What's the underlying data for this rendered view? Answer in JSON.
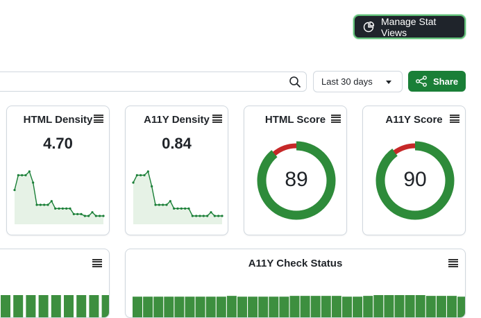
{
  "toolbar": {
    "manage_label": "Manage Stat Views",
    "search_value": "",
    "search_placeholder": "",
    "date_range": "Last 30 days",
    "share_label": "Share"
  },
  "icons": {
    "manage": "pie-chart-icon",
    "search": "search-icon",
    "date_caret": "caret-down-icon",
    "share": "share-icon",
    "menu": "hamburger-menu-icon"
  },
  "colors": {
    "accent_green": "#1a7f37",
    "bar_green": "#3d8f3f",
    "gauge_green": "#2e8b3a",
    "gauge_red": "#c62828",
    "spark_fill": "#e6f2e6"
  },
  "cards": [
    {
      "title": "HTML Density",
      "value": "4.70",
      "type": "sparkline"
    },
    {
      "title": "A11Y Density",
      "value": "0.84",
      "type": "sparkline"
    },
    {
      "title": "HTML Score",
      "value": "89",
      "type": "gauge"
    },
    {
      "title": "A11Y Score",
      "value": "90",
      "type": "gauge"
    }
  ],
  "lower_cards": [
    {
      "title": ""
    },
    {
      "title": "A11Y Check Status"
    }
  ],
  "chart_data": [
    {
      "type": "area",
      "title": "HTML Density",
      "values": [
        5.6,
        6.4,
        6.4,
        6.4,
        6.6,
        6.0,
        4.8,
        4.8,
        4.8,
        4.8,
        5.0,
        4.6,
        4.6,
        4.6,
        4.6,
        4.6,
        4.3,
        4.3,
        4.3,
        4.2,
        4.2,
        4.4,
        4.2,
        4.2,
        4.2
      ]
    },
    {
      "type": "area",
      "title": "A11Y Density",
      "values": [
        1.7,
        1.9,
        1.9,
        1.9,
        2.0,
        1.6,
        1.1,
        1.1,
        1.1,
        1.1,
        1.2,
        1.0,
        1.0,
        1.0,
        1.0,
        1.0,
        0.8,
        0.8,
        0.8,
        0.8,
        0.8,
        0.9,
        0.8,
        0.8,
        0.8
      ]
    },
    {
      "type": "pie",
      "title": "HTML Score",
      "values": [
        89,
        11
      ]
    },
    {
      "type": "pie",
      "title": "A11Y Score",
      "values": [
        90,
        10
      ]
    },
    {
      "type": "bar",
      "title": "",
      "values": [
        30,
        30,
        30,
        30,
        30,
        30,
        30,
        30,
        30
      ]
    },
    {
      "type": "bar",
      "title": "A11Y Check Status",
      "values": [
        28,
        28,
        28,
        28,
        28,
        28,
        28,
        28,
        28,
        29,
        28,
        28,
        28,
        28,
        28,
        29,
        29,
        29,
        29,
        29,
        28,
        28,
        29,
        30,
        30,
        30,
        30,
        30,
        29,
        29,
        29,
        28,
        28,
        28
      ]
    }
  ]
}
